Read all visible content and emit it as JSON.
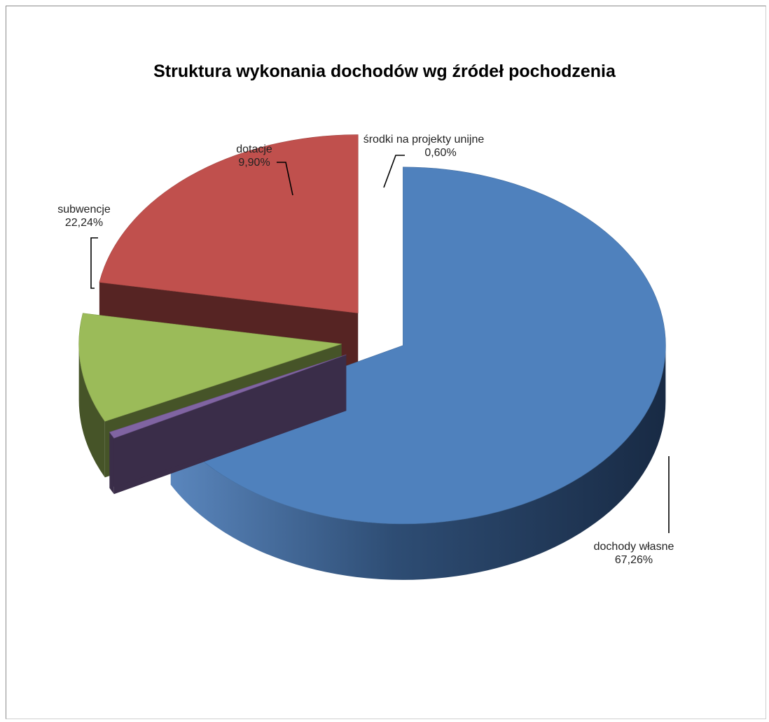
{
  "chart_data": {
    "type": "pie",
    "style": "3d-exploded",
    "title": "Struktura wykonania dochodów wg źródeł pochodzenia",
    "slices": [
      {
        "name": "dochody własne",
        "value": 67.26,
        "label": "67,26%",
        "color": "#4f81bd"
      },
      {
        "name": "środki na projekty unijne",
        "value": 0.6,
        "label": "0,60%",
        "color": "#8064a2"
      },
      {
        "name": "dotacje",
        "value": 9.9,
        "label": "9,90%",
        "color": "#9bbb59"
      },
      {
        "name": "subwencje",
        "value": 22.24,
        "label": "22,24%",
        "color": "#c0504d"
      }
    ]
  }
}
